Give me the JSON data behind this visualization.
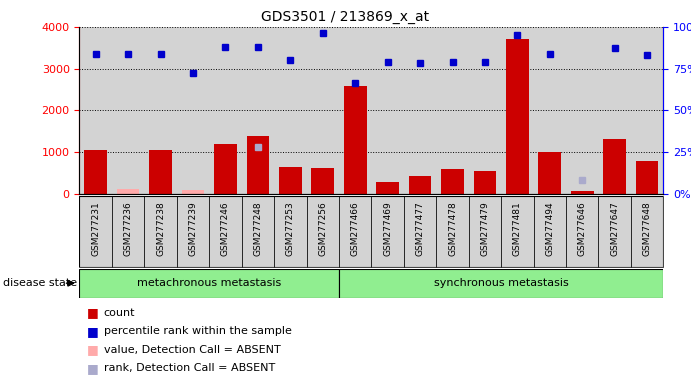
{
  "title": "GDS3501 / 213869_x_at",
  "samples": [
    "GSM277231",
    "GSM277236",
    "GSM277238",
    "GSM277239",
    "GSM277246",
    "GSM277248",
    "GSM277253",
    "GSM277256",
    "GSM277466",
    "GSM277469",
    "GSM277477",
    "GSM277478",
    "GSM277479",
    "GSM277481",
    "GSM277494",
    "GSM277646",
    "GSM277647",
    "GSM277648"
  ],
  "counts": [
    1050,
    120,
    1050,
    100,
    1200,
    1380,
    650,
    620,
    2580,
    290,
    440,
    600,
    540,
    3720,
    1000,
    75,
    1320,
    800
  ],
  "counts_absent": [
    null,
    120,
    null,
    100,
    null,
    null,
    null,
    null,
    null,
    null,
    null,
    null,
    null,
    null,
    null,
    null,
    null,
    null
  ],
  "percentile_ranks": [
    3350,
    3360,
    3350,
    2900,
    3520,
    3520,
    3200,
    3850,
    2650,
    3150,
    3140,
    3160,
    3160,
    3800,
    3360,
    null,
    3500,
    3320
  ],
  "ranks_absent": [
    null,
    null,
    null,
    null,
    null,
    1120,
    null,
    null,
    null,
    null,
    null,
    null,
    null,
    null,
    null,
    330,
    null,
    null
  ],
  "group1_label": "metachronous metastasis",
  "group2_label": "synchronous metastasis",
  "group1_count": 8,
  "group2_count": 10,
  "ylim_left": [
    0,
    4000
  ],
  "ylim_right": [
    0,
    100
  ],
  "yticks_left": [
    0,
    1000,
    2000,
    3000,
    4000
  ],
  "yticks_right": [
    0,
    25,
    50,
    75,
    100
  ],
  "bar_color": "#cc0000",
  "bar_absent_color": "#ffaaaa",
  "dot_color": "#0000cc",
  "dot_absent_color": "#aaaacc",
  "bg_color": "#d3d3d3",
  "group_bg_color": "#90ee90",
  "legend_items": [
    {
      "color": "#cc0000",
      "label": "count"
    },
    {
      "color": "#0000cc",
      "label": "percentile rank within the sample"
    },
    {
      "color": "#ffaaaa",
      "label": "value, Detection Call = ABSENT"
    },
    {
      "color": "#aaaacc",
      "label": "rank, Detection Call = ABSENT"
    }
  ]
}
